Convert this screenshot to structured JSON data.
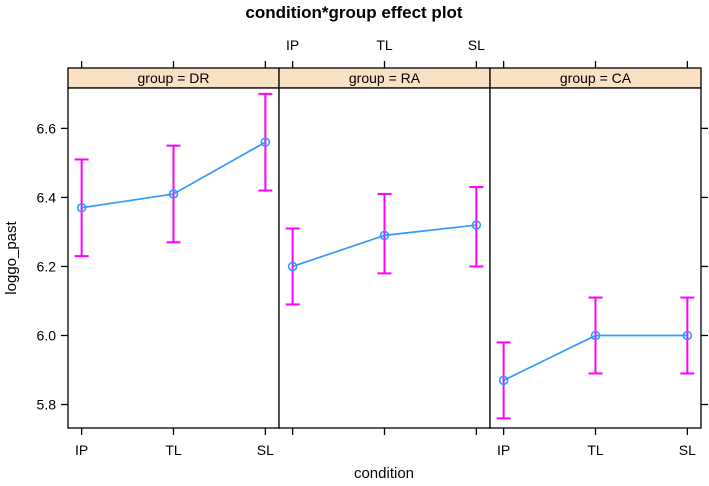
{
  "chart_data": {
    "type": "line",
    "title": "condition*group effect plot",
    "xlabel": "condition",
    "ylabel": "loggo_past",
    "categories": [
      "IP",
      "TL",
      "SL"
    ],
    "y_ticks": [
      5.8,
      6.0,
      6.2,
      6.4,
      6.6
    ],
    "y_tick_labels": [
      "5.8",
      "6.0",
      "6.2",
      "6.4",
      "6.6"
    ],
    "ylim": [
      5.732,
      6.717
    ],
    "grid": false,
    "x_axis": {
      "top_label_panel": 1,
      "bottom_label_panels": [
        0,
        2
      ]
    },
    "panels": [
      {
        "label": "group = DR",
        "means": [
          6.37,
          6.41,
          6.56
        ],
        "lower": [
          6.23,
          6.27,
          6.42
        ],
        "upper": [
          6.51,
          6.55,
          6.7
        ]
      },
      {
        "label": "group = RA",
        "means": [
          6.2,
          6.29,
          6.32
        ],
        "lower": [
          6.09,
          6.18,
          6.2
        ],
        "upper": [
          6.31,
          6.41,
          6.43
        ]
      },
      {
        "label": "group = CA",
        "means": [
          5.87,
          6.0,
          6.0
        ],
        "lower": [
          5.76,
          5.89,
          5.89
        ],
        "upper": [
          5.98,
          6.11,
          6.11
        ]
      }
    ],
    "colors": {
      "line": "#3399FF",
      "point": "#3399FF",
      "errorbar": "#FF00FF",
      "strip_fill": "#FBE1C4",
      "strip_border": "#000000",
      "panel_border": "#000000",
      "panel_fill": "#FFFFFF",
      "text": "#000000"
    }
  }
}
